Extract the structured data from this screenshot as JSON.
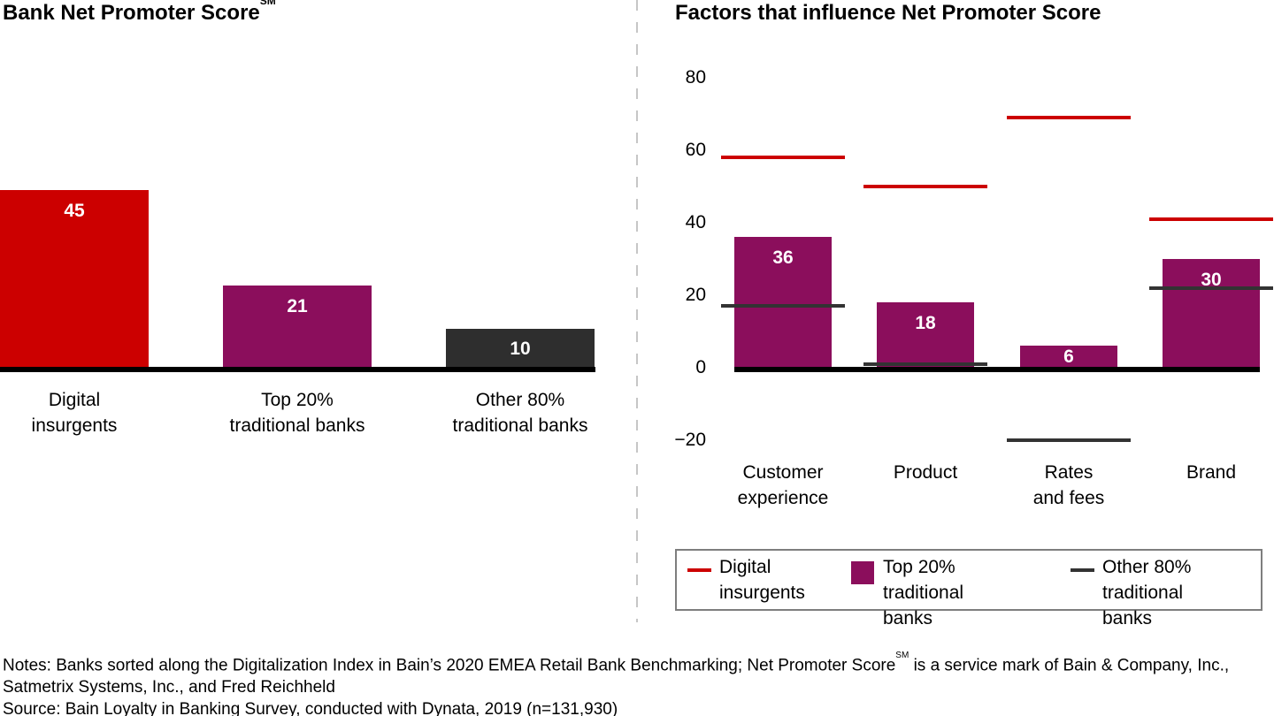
{
  "chart_data": [
    {
      "id": "bank-nps",
      "type": "bar",
      "title": "Bank Net Promoter Score",
      "title_mark": "SM",
      "categories": [
        "Digital\ninsurgents",
        "Top 20%\ntraditional banks",
        "Other 80%\ntraditional banks"
      ],
      "values": [
        45,
        21,
        10
      ],
      "bar_colors": [
        "#cc0000",
        "#8b0e5c",
        "#2e2e2e"
      ],
      "value_label_color": "#ffffff",
      "ylim": [
        0,
        48
      ],
      "gridlines": false,
      "axis_line_color": "#000000"
    },
    {
      "id": "nps-factors",
      "type": "bar+line",
      "title": "Factors that influence Net Promoter Score",
      "categories": [
        "Customer\nexperience",
        "Product",
        "Rates\nand fees",
        "Brand"
      ],
      "yticks": [
        80,
        60,
        40,
        20,
        0,
        -20
      ],
      "ylim": [
        -24,
        84
      ],
      "gridlines": false,
      "axis_line_color": "#000000",
      "series": [
        {
          "name": "Digital insurgents",
          "mark": "line",
          "color": "#cc0000",
          "values": [
            58,
            50,
            69,
            41
          ]
        },
        {
          "name": "Top 20% traditional banks",
          "mark": "bar",
          "color": "#8b0e5c",
          "values": [
            36,
            18,
            6,
            30
          ],
          "value_label_color": "#ffffff"
        },
        {
          "name": "Other 80% traditional banks",
          "mark": "line",
          "color": "#333333",
          "values": [
            17,
            1,
            -20,
            22
          ]
        }
      ]
    }
  ],
  "legend": {
    "items": [
      {
        "label": "Digital\ninsurgents",
        "swatch": "line",
        "color": "#cc0000"
      },
      {
        "label": "Top 20%\ntraditional banks",
        "swatch": "square",
        "color": "#8b0e5c"
      },
      {
        "label": "Other 80%\ntraditional banks",
        "swatch": "line",
        "color": "#333333"
      }
    ]
  },
  "footnotes": {
    "notes_line1_pre": "Notes: Banks sorted along the Digitalization Index in Bain’s 2020 EMEA Retail Bank Benchmarking; Net Promoter Score",
    "service_mark": "SM",
    "notes_line1_post": " is a service mark of Bain & Company, Inc.,",
    "notes_line2": "Satmetrix Systems, Inc., and Fred Reichheld",
    "source": "Source: Bain Loyalty in Banking Survey, conducted with Dynata, 2019 (n=131,930)"
  }
}
